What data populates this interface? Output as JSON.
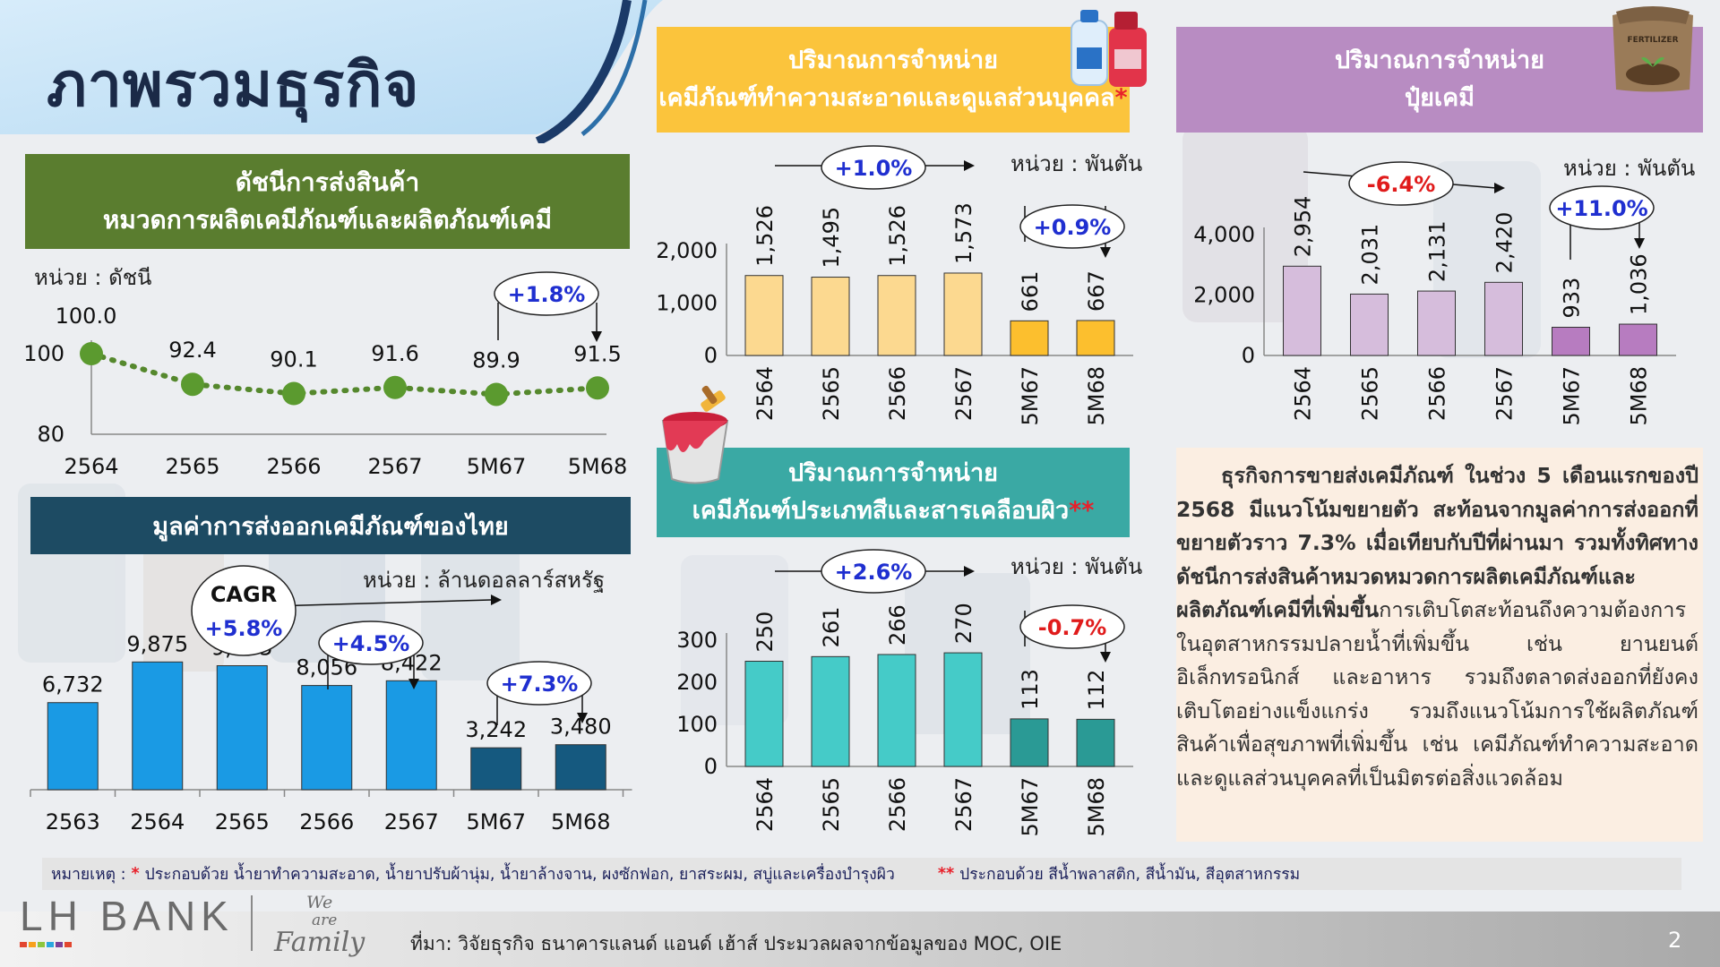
{
  "page": {
    "title": "ภาพรวมธุรกิจ",
    "page_number": "2"
  },
  "colors": {
    "green_header": "#5a7d2f",
    "navy_header": "#1d4b63",
    "yellow_header": "#fbc43c",
    "purple_header": "#b88cc2",
    "teal_header": "#3aa9a4"
  },
  "panel_export_index": {
    "title_line1": "ดัชนีการส่งสินค้า",
    "title_line2": "หมวดการผลิตเคมีภัณฑ์และผลิตภัณฑ์เคมี",
    "unit": "หน่วย : ดัชนี",
    "badge": "+1.8%"
  },
  "panel_export_value": {
    "title": "มูลค่าการส่งออกเคมีภัณฑ์ของไทย",
    "unit": "หน่วย : ล้านดอลลาร์สหรัฐ",
    "cagr_label": "CAGR",
    "cagr_value": "+5.8%",
    "badge_a": "+4.5%",
    "badge_b": "+7.3%"
  },
  "panel_cleaning": {
    "title_line1": "ปริมาณการจำหน่าย",
    "title_line2": "เคมีภัณฑ์ทำความสะอาดและดูแลส่วนบุคคล",
    "title_mark": "*",
    "unit": "หน่วย : พันตัน",
    "badge_a": "+1.0%",
    "badge_b": "+0.9%"
  },
  "panel_fertilizer": {
    "title_line1": "ปริมาณการจำหน่าย",
    "title_line2": "ปุ๋ยเคมี",
    "unit": "หน่วย : พันตัน",
    "badge_a": "-6.4%",
    "badge_b": "+11.0%",
    "icon": "fertilizer-sack-icon",
    "icon_text": "FERTILIZER"
  },
  "panel_paint": {
    "title_line1": "ปริมาณการจำหน่าย",
    "title_line2": "เคมีภัณฑ์ประเภทสีและสารเคลือบผิว",
    "title_mark": "**",
    "unit": "หน่วย : พันตัน",
    "badge_a": "+2.6%",
    "badge_b": "-0.7%"
  },
  "summary": {
    "bold_text": "ธุรกิจการขายส่งเคมีภัณฑ์ ในช่วง 5 เดือนแรกของปี 2568 มีแนวโน้มขยายตัว สะท้อนจากมูลค่าการส่งออกที่ขยายตัวราว 7.3% เมื่อเทียบกับปีที่ผ่านมา รวมทั้งทิศทางดัชนีการส่งสินค้าหมวดหมวดการผลิตเคมีภัณฑ์และผลิตภัณฑ์เคมีที่เพิ่มขึ้น",
    "normal_text": "การเติบโตสะท้อนถึงความต้องการในอุตสาหกรรมปลายน้ำที่เพิ่มขึ้น เช่น ยานยนต์ อิเล็กทรอนิกส์ และอาหาร รวมถึงตลาดส่งออกที่ยังคงเติบโตอย่างแข็งแกร่ง รวมถึงแนวโน้มการใช้ผลิตภัณฑ์สินค้าเพื่อสุขภาพที่เพิ่มขึ้น เช่น เคมีภัณฑ์ทำความสะอาดและดูแลส่วนบุคคลที่เป็นมิตรต่อสิ่งแวดล้อม"
  },
  "notes": {
    "label": "หมายเหตุ :",
    "star1": "*",
    "note1": "ประกอบด้วย น้ำยาทำความสะอาด, น้ำยาปรับผ้านุ่ม, น้ำยาล้างจาน, ผงซักฟอก, ยาสระผม, สบู่และเครื่องบำรุงผิว",
    "star2": "**",
    "note2": "ประกอบด้วย สีน้ำพลาสติก, สีน้ำมัน, สีอุตสาหกรรม"
  },
  "footer": {
    "logo_text": "LH BANK",
    "slogan_line1": "We",
    "slogan_line2": "are",
    "slogan_line3": "Family",
    "source": "ที่มา: วิจัยธุรกิจ ธนาคารแลนด์ แอนด์ เฮ้าส์ ประมวลผลจากข้อมูลของ MOC, OIE"
  },
  "chart_data": [
    {
      "id": "export_index",
      "type": "line",
      "categories": [
        "2564",
        "2565",
        "2566",
        "2567",
        "5M67",
        "5M68"
      ],
      "values": [
        100.0,
        92.4,
        90.1,
        91.6,
        89.9,
        91.5
      ],
      "data_labels": [
        "100.0",
        "92.4",
        "90.1",
        "91.6",
        "89.9",
        "91.5"
      ],
      "yticks": [
        "100",
        "80"
      ],
      "ylim": [
        80,
        110
      ],
      "grid": false
    },
    {
      "id": "export_value",
      "type": "bar",
      "categories": [
        "2563",
        "2564",
        "2565",
        "2566",
        "2567",
        "5M67",
        "5M68"
      ],
      "values": [
        6732,
        9875,
        9585,
        8056,
        8422,
        3242,
        3480
      ],
      "data_labels": [
        "6,732",
        "9,875",
        "9,585",
        "8,056",
        "8,422",
        "3,242",
        "3,480"
      ],
      "colors": [
        "#1a9ae4",
        "#1a9ae4",
        "#1a9ae4",
        "#1a9ae4",
        "#1a9ae4",
        "#15597f",
        "#15597f"
      ],
      "ylim": [
        0,
        12000
      ],
      "grid": false
    },
    {
      "id": "cleaning",
      "type": "bar",
      "categories": [
        "2564",
        "2565",
        "2566",
        "2567",
        "5M67",
        "5M68"
      ],
      "values": [
        1526,
        1495,
        1526,
        1573,
        661,
        667
      ],
      "data_labels": [
        "1,526",
        "1,495",
        "1,526",
        "1,573",
        "661",
        "667"
      ],
      "colors": [
        "#fcd990",
        "#fcd990",
        "#fcd990",
        "#fcd990",
        "#fcbf2e",
        "#fcbf2e"
      ],
      "yticks": [
        "2,000",
        "1,000",
        "0"
      ],
      "ytick_values": [
        2000,
        1000,
        0
      ],
      "ylim": [
        0,
        2000
      ],
      "grid": false
    },
    {
      "id": "fertilizer",
      "type": "bar",
      "categories": [
        "2564",
        "2565",
        "2566",
        "2567",
        "5M67",
        "5M68"
      ],
      "values": [
        2954,
        2031,
        2131,
        2420,
        933,
        1036
      ],
      "data_labels": [
        "2,954",
        "2,031",
        "2,131",
        "2,420",
        "933",
        "1,036"
      ],
      "colors": [
        "#d6bddc",
        "#d6bddc",
        "#d6bddc",
        "#d6bddc",
        "#b77cc0",
        "#b77cc0"
      ],
      "yticks": [
        "4,000",
        "2,000",
        "0"
      ],
      "ytick_values": [
        4000,
        2000,
        0
      ],
      "ylim": [
        0,
        4000
      ],
      "grid": false
    },
    {
      "id": "paint",
      "type": "bar",
      "categories": [
        "2564",
        "2565",
        "2566",
        "2567",
        "5M67",
        "5M68"
      ],
      "values": [
        250,
        261,
        266,
        270,
        113,
        112
      ],
      "data_labels": [
        "250",
        "261",
        "266",
        "270",
        "113",
        "112"
      ],
      "colors": [
        "#45cbc8",
        "#45cbc8",
        "#45cbc8",
        "#45cbc8",
        "#2a9a95",
        "#2a9a95"
      ],
      "yticks": [
        "300",
        "200",
        "100",
        "0"
      ],
      "ytick_values": [
        300,
        200,
        100,
        0
      ],
      "ylim": [
        0,
        300
      ],
      "grid": false
    }
  ]
}
